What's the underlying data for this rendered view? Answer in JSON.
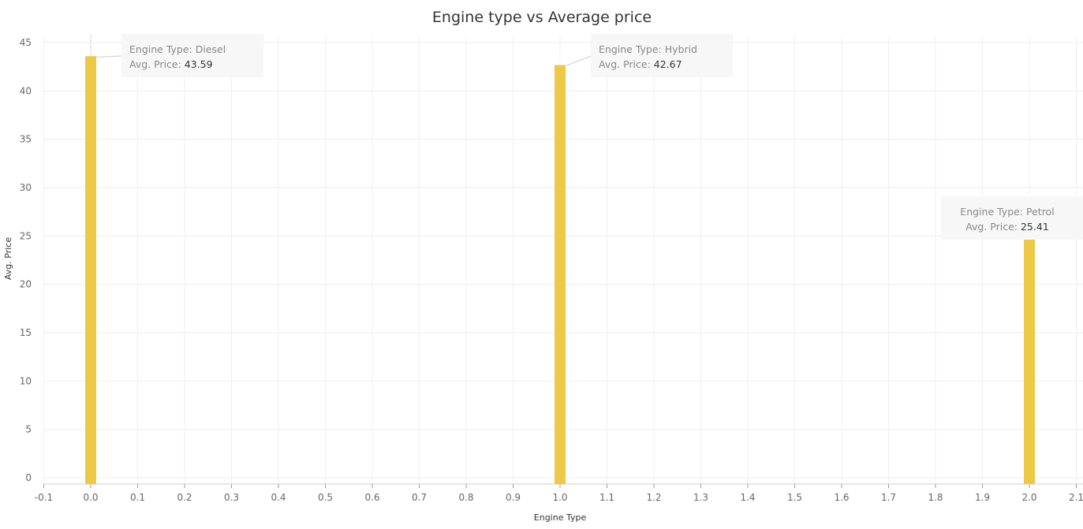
{
  "chart_data": {
    "type": "bar",
    "title": "Engine type vs Average price",
    "xlabel": "Engine Type",
    "ylabel": "Avg. Price",
    "xlim": [
      -0.1,
      2.1
    ],
    "ylim": [
      0,
      45
    ],
    "x_ticks": [
      "-0.1",
      "0.0",
      "0.1",
      "0.2",
      "0.3",
      "0.4",
      "0.5",
      "0.6",
      "0.7",
      "0.8",
      "0.9",
      "1.0",
      "1.1",
      "1.2",
      "1.3",
      "1.4",
      "1.5",
      "1.6",
      "1.7",
      "1.8",
      "1.9",
      "2.0",
      "2.1"
    ],
    "y_ticks": [
      "0",
      "5",
      "10",
      "15",
      "20",
      "25",
      "30",
      "35",
      "40",
      "45"
    ],
    "grid": true,
    "bar_color": "#EDC948",
    "points": [
      {
        "x": 0,
        "value": 43.59,
        "tooltip_type": "Engine Type: Diesel",
        "tooltip_key": "Avg. Price:",
        "tooltip_value": "43.59"
      },
      {
        "x": 1,
        "value": 42.67,
        "tooltip_type": "Engine Type: Hybrid",
        "tooltip_key": "Avg. Price:",
        "tooltip_value": "42.67"
      },
      {
        "x": 2,
        "value": 25.41,
        "tooltip_type": "Engine Type: Petrol",
        "tooltip_key": "Avg. Price:",
        "tooltip_value": "25.41"
      }
    ]
  }
}
